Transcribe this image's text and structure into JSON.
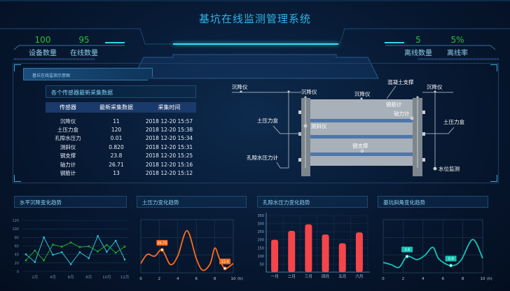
{
  "header": {
    "title": "基坑在线监测管理系统"
  },
  "stats": [
    {
      "value": "100",
      "label": "设备数量"
    },
    {
      "value": "95",
      "label": "在线数量"
    },
    {
      "value": "5",
      "label": "离线数量"
    },
    {
      "value": "5%",
      "label": "离线率"
    }
  ],
  "main": {
    "tag": "基坑在线监测示意图",
    "table": {
      "title": "各个传感器最新采集数据",
      "headers": [
        "传感器",
        "最新采集数据",
        "采集时间"
      ],
      "rows": [
        [
          "沉降仪",
          "11",
          "2018 12-20 15:57"
        ],
        [
          "土压力盒",
          "120",
          "2018 12-20 15:38"
        ],
        [
          "孔隙水压力",
          "0.01",
          "2018 12-20 15:34"
        ],
        [
          "测斜仪",
          "0.820",
          "2018 12-20 15:31"
        ],
        [
          "钢支撑",
          "23.8",
          "2018 12-20 15:25"
        ],
        [
          "轴力计",
          "26.71",
          "2018 12-20 15:16"
        ],
        [
          "钢筋计",
          "13",
          "2018 12-20 15:12"
        ]
      ]
    },
    "diagram": {
      "settle_1": "沉降仪",
      "settle_2": "沉降仪",
      "settle_3": "沉降仪",
      "settle_4": "沉降仪",
      "concrete_support": "混凝土支撑",
      "rebar_meter": "钢筋计",
      "axial_meter": "轴力计",
      "earth_box_left": "土压力盒",
      "earth_box_right": "土压力盒",
      "inclinometer": "测斜仪",
      "steel_support": "钢支撑",
      "pore_pressure": "孔隙水压力计",
      "water_level": "水位监测"
    }
  },
  "colors": {
    "accent": "#2fb3e6",
    "stat_value": "#22c43a",
    "line_cyan": "#27c6d6",
    "line_green": "#1fae2a",
    "orange": "#ff6a1a",
    "bar_red": "#f5454a",
    "teal": "#16c3b5"
  },
  "chart_data": [
    {
      "type": "line",
      "title": "水平沉降变化趋势",
      "x": [
        1,
        2,
        3,
        4,
        5,
        6,
        7,
        8,
        9,
        10,
        11,
        12
      ],
      "tick_labels": [
        "2月",
        "4月",
        "6月",
        "8月",
        "10月",
        "12月"
      ],
      "ylim": [
        0,
        120
      ],
      "yticks": [
        0,
        20,
        40,
        60,
        80,
        100,
        120
      ],
      "series": [
        {
          "values": [
            40,
            22,
            80,
            39,
            45,
            17,
            45,
            31,
            83,
            46,
            72,
            28
          ]
        },
        {
          "values": [
            26,
            49,
            26,
            63,
            58,
            68,
            57,
            59,
            47,
            62,
            44,
            58
          ]
        }
      ]
    },
    {
      "type": "line",
      "title": "土压力变化趋势",
      "xlim": [
        0,
        10
      ],
      "xticks": [
        0,
        2,
        4,
        6,
        8,
        10
      ],
      "xunit": "(h)",
      "ylim": [
        9,
        50
      ],
      "x": [
        0,
        0.7,
        1.5,
        2.3,
        3.2,
        4,
        5,
        6,
        6.7,
        7.5,
        8,
        8.5,
        9.1,
        10
      ],
      "values": [
        16.2,
        23.2,
        21.8,
        26.71,
        15.4,
        22,
        41.5,
        20,
        11,
        16,
        28.1,
        20,
        12.4,
        16.2
      ],
      "annotations": [
        {
          "x": 2.3,
          "label": "26.71"
        },
        {
          "x": 9.1,
          "label": "12.4"
        }
      ]
    },
    {
      "type": "bar",
      "title": "孔隙水压力变化趋势",
      "categories": [
        "一月",
        "二月",
        "三月",
        "四月",
        "五月",
        "六月"
      ],
      "values": [
        200,
        255,
        295,
        232,
        178,
        245
      ],
      "ylim": [
        0,
        350
      ],
      "yticks": [
        50,
        100,
        150,
        200,
        250,
        300,
        350
      ]
    },
    {
      "type": "line",
      "title": "基坑斜角变化趋势",
      "xlim": [
        0,
        10
      ],
      "xticks": [
        0,
        2,
        4,
        6,
        8,
        10
      ],
      "xunit": "(h)",
      "ylim": [
        -1.4,
        15.5
      ],
      "x": [
        0,
        0.8,
        1.6,
        2.4,
        3.4,
        4.2,
        5,
        5.6,
        6.8,
        7.8,
        9,
        10
      ],
      "values": [
        1.9,
        1.2,
        0.34,
        3.8,
        2.8,
        4.2,
        6.7,
        3,
        0.9,
        2.5,
        9.2,
        3.2
      ],
      "annotations": [
        {
          "x": 2.4,
          "label": "3.8"
        },
        {
          "x": 6.8,
          "label": "0.9"
        }
      ]
    }
  ]
}
